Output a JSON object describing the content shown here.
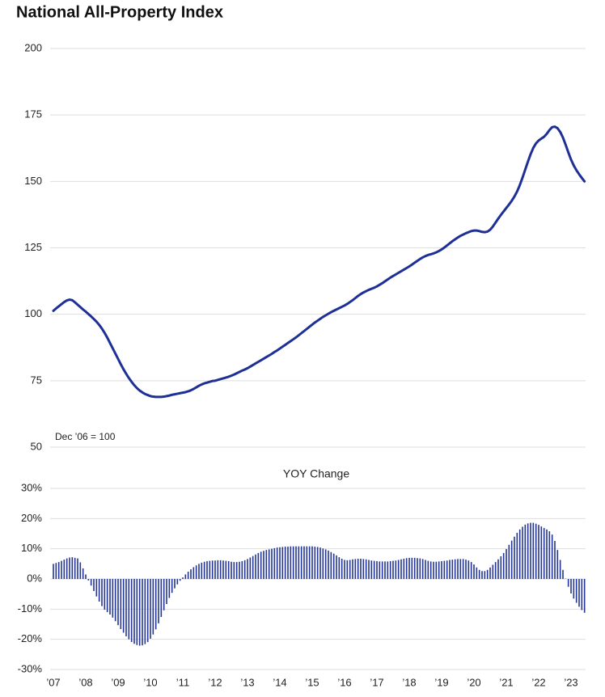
{
  "chart_data": [
    {
      "type": "line",
      "title": "National All-Property Index",
      "annotation": "Dec ’06 = 100",
      "color": "#1e2f96",
      "ylim": [
        50,
        200
      ],
      "yticks": [
        50,
        75,
        100,
        125,
        150,
        175,
        200
      ],
      "grid": true,
      "values": [
        101.3,
        102.2,
        103.0,
        103.8,
        104.6,
        105.2,
        105.5,
        105.3,
        104.5,
        103.6,
        102.7,
        101.8,
        101.0,
        100.1,
        99.2,
        98.2,
        97.2,
        96.0,
        94.6,
        93.0,
        91.2,
        89.2,
        87.2,
        85.2,
        83.2,
        81.2,
        79.3,
        77.6,
        76.0,
        74.6,
        73.3,
        72.2,
        71.3,
        70.6,
        70.0,
        69.6,
        69.2,
        69.0,
        68.9,
        68.9,
        68.9,
        69.0,
        69.2,
        69.4,
        69.7,
        69.9,
        70.1,
        70.3,
        70.5,
        70.7,
        71.0,
        71.4,
        71.9,
        72.5,
        73.1,
        73.6,
        74.0,
        74.3,
        74.6,
        74.9,
        75.0,
        75.3,
        75.6,
        75.9,
        76.2,
        76.5,
        76.9,
        77.3,
        77.8,
        78.3,
        78.8,
        79.2,
        79.7,
        80.3,
        80.9,
        81.5,
        82.1,
        82.7,
        83.3,
        83.9,
        84.5,
        85.1,
        85.8,
        86.4,
        87.1,
        87.8,
        88.5,
        89.2,
        89.9,
        90.6,
        91.3,
        92.1,
        92.9,
        93.7,
        94.5,
        95.3,
        96.1,
        96.9,
        97.6,
        98.3,
        99.0,
        99.6,
        100.2,
        100.8,
        101.3,
        101.8,
        102.3,
        102.8,
        103.3,
        103.9,
        104.6,
        105.3,
        106.1,
        106.9,
        107.6,
        108.2,
        108.7,
        109.2,
        109.6,
        110.0,
        110.5,
        111.1,
        111.7,
        112.4,
        113.1,
        113.8,
        114.4,
        115.0,
        115.6,
        116.2,
        116.8,
        117.4,
        118.0,
        118.7,
        119.4,
        120.1,
        120.8,
        121.4,
        121.9,
        122.3,
        122.6,
        122.9,
        123.3,
        123.8,
        124.4,
        125.1,
        125.9,
        126.7,
        127.5,
        128.2,
        128.9,
        129.5,
        130.0,
        130.5,
        130.9,
        131.3,
        131.5,
        131.5,
        131.3,
        131.0,
        130.9,
        131.1,
        131.8,
        133.0,
        134.5,
        136.0,
        137.4,
        138.7,
        140.0,
        141.3,
        142.7,
        144.3,
        146.2,
        148.6,
        151.4,
        154.4,
        157.4,
        160.2,
        162.6,
        164.3,
        165.4,
        166.1,
        166.8,
        167.9,
        169.3,
        170.4,
        170.6,
        170.0,
        168.6,
        166.5,
        163.8,
        160.9,
        158.2,
        156.0,
        154.2,
        152.7,
        151.3,
        150.0
      ]
    },
    {
      "type": "bar",
      "title": "YOY Change",
      "color": "#233595",
      "grid": true,
      "ylim": [
        -30,
        30
      ],
      "yticks": [
        {
          "value": -30,
          "label": "-30%"
        },
        {
          "value": -20,
          "label": "-20%"
        },
        {
          "value": -10,
          "label": "-10%"
        },
        {
          "value": 0,
          "label": "0%"
        },
        {
          "value": 10,
          "label": "10%"
        },
        {
          "value": 20,
          "label": "20%"
        },
        {
          "value": 30,
          "label": "30%"
        }
      ],
      "categories": [
        "’07",
        null,
        null,
        null,
        null,
        null,
        null,
        null,
        null,
        null,
        null,
        null,
        "’08",
        null,
        null,
        null,
        null,
        null,
        null,
        null,
        null,
        null,
        null,
        null,
        "’09",
        null,
        null,
        null,
        null,
        null,
        null,
        null,
        null,
        null,
        null,
        null,
        "’10",
        null,
        null,
        null,
        null,
        null,
        null,
        null,
        null,
        null,
        null,
        null,
        "’11",
        null,
        null,
        null,
        null,
        null,
        null,
        null,
        null,
        null,
        null,
        null,
        "’12",
        null,
        null,
        null,
        null,
        null,
        null,
        null,
        null,
        null,
        null,
        null,
        "’13",
        null,
        null,
        null,
        null,
        null,
        null,
        null,
        null,
        null,
        null,
        null,
        "’14",
        null,
        null,
        null,
        null,
        null,
        null,
        null,
        null,
        null,
        null,
        null,
        "’15",
        null,
        null,
        null,
        null,
        null,
        null,
        null,
        null,
        null,
        null,
        null,
        "’16",
        null,
        null,
        null,
        null,
        null,
        null,
        null,
        null,
        null,
        null,
        null,
        "’17",
        null,
        null,
        null,
        null,
        null,
        null,
        null,
        null,
        null,
        null,
        null,
        "’18",
        null,
        null,
        null,
        null,
        null,
        null,
        null,
        null,
        null,
        null,
        null,
        "’19",
        null,
        null,
        null,
        null,
        null,
        null,
        null,
        null,
        null,
        null,
        null,
        "’20",
        null,
        null,
        null,
        null,
        null,
        null,
        null,
        null,
        null,
        null,
        null,
        "’21",
        null,
        null,
        null,
        null,
        null,
        null,
        null,
        null,
        null,
        null,
        null,
        "’22",
        null,
        null,
        null,
        null,
        null,
        null,
        null,
        null,
        null,
        null,
        null,
        "’23",
        null,
        null,
        null,
        null,
        null
      ],
      "values": [
        5.0,
        5.3,
        5.6,
        6.0,
        6.4,
        6.8,
        7.1,
        7.2,
        7.0,
        6.8,
        5.5,
        3.5,
        1.5,
        -0.5,
        -2.2,
        -4.0,
        -5.8,
        -7.5,
        -9.0,
        -10.2,
        -11.0,
        -11.8,
        -12.8,
        -14.0,
        -15.3,
        -16.6,
        -17.8,
        -19.0,
        -20.0,
        -20.9,
        -21.5,
        -21.9,
        -22.1,
        -22.0,
        -21.6,
        -20.9,
        -19.8,
        -18.4,
        -16.7,
        -14.7,
        -12.6,
        -10.4,
        -8.3,
        -6.3,
        -4.6,
        -3.1,
        -1.8,
        -0.6,
        0.5,
        1.5,
        2.4,
        3.2,
        3.9,
        4.5,
        5.0,
        5.4,
        5.7,
        5.9,
        6.0,
        6.1,
        6.1,
        6.2,
        6.2,
        6.1,
        6.0,
        5.9,
        5.7,
        5.6,
        5.6,
        5.7,
        5.9,
        6.2,
        6.6,
        7.1,
        7.6,
        8.1,
        8.6,
        9.0,
        9.3,
        9.6,
        9.8,
        10.0,
        10.2,
        10.4,
        10.5,
        10.6,
        10.7,
        10.7,
        10.8,
        10.8,
        10.8,
        10.8,
        10.8,
        10.8,
        10.8,
        10.8,
        10.8,
        10.7,
        10.6,
        10.4,
        10.1,
        9.8,
        9.4,
        8.9,
        8.4,
        7.8,
        7.2,
        6.7,
        6.3,
        6.2,
        6.3,
        6.5,
        6.6,
        6.7,
        6.7,
        6.6,
        6.5,
        6.3,
        6.1,
        6.0,
        5.9,
        5.8,
        5.8,
        5.8,
        5.8,
        5.9,
        6.0,
        6.1,
        6.3,
        6.5,
        6.7,
        6.9,
        7.0,
        7.0,
        7.0,
        6.9,
        6.8,
        6.6,
        6.3,
        6.0,
        5.8,
        5.7,
        5.7,
        5.8,
        5.9,
        6.0,
        6.1,
        6.3,
        6.4,
        6.5,
        6.6,
        6.6,
        6.6,
        6.4,
        6.1,
        5.6,
        4.8,
        3.8,
        3.0,
        2.6,
        2.6,
        3.0,
        3.8,
        4.7,
        5.6,
        6.5,
        7.5,
        8.6,
        9.9,
        11.3,
        12.7,
        14.0,
        15.3,
        16.4,
        17.3,
        18.0,
        18.4,
        18.6,
        18.6,
        18.3,
        17.9,
        17.4,
        16.9,
        16.4,
        15.8,
        14.7,
        12.6,
        9.6,
        6.3,
        3.0,
        0.1,
        -2.6,
        -4.8,
        -6.5,
        -7.9,
        -9.2,
        -10.3,
        -11.2
      ]
    }
  ]
}
